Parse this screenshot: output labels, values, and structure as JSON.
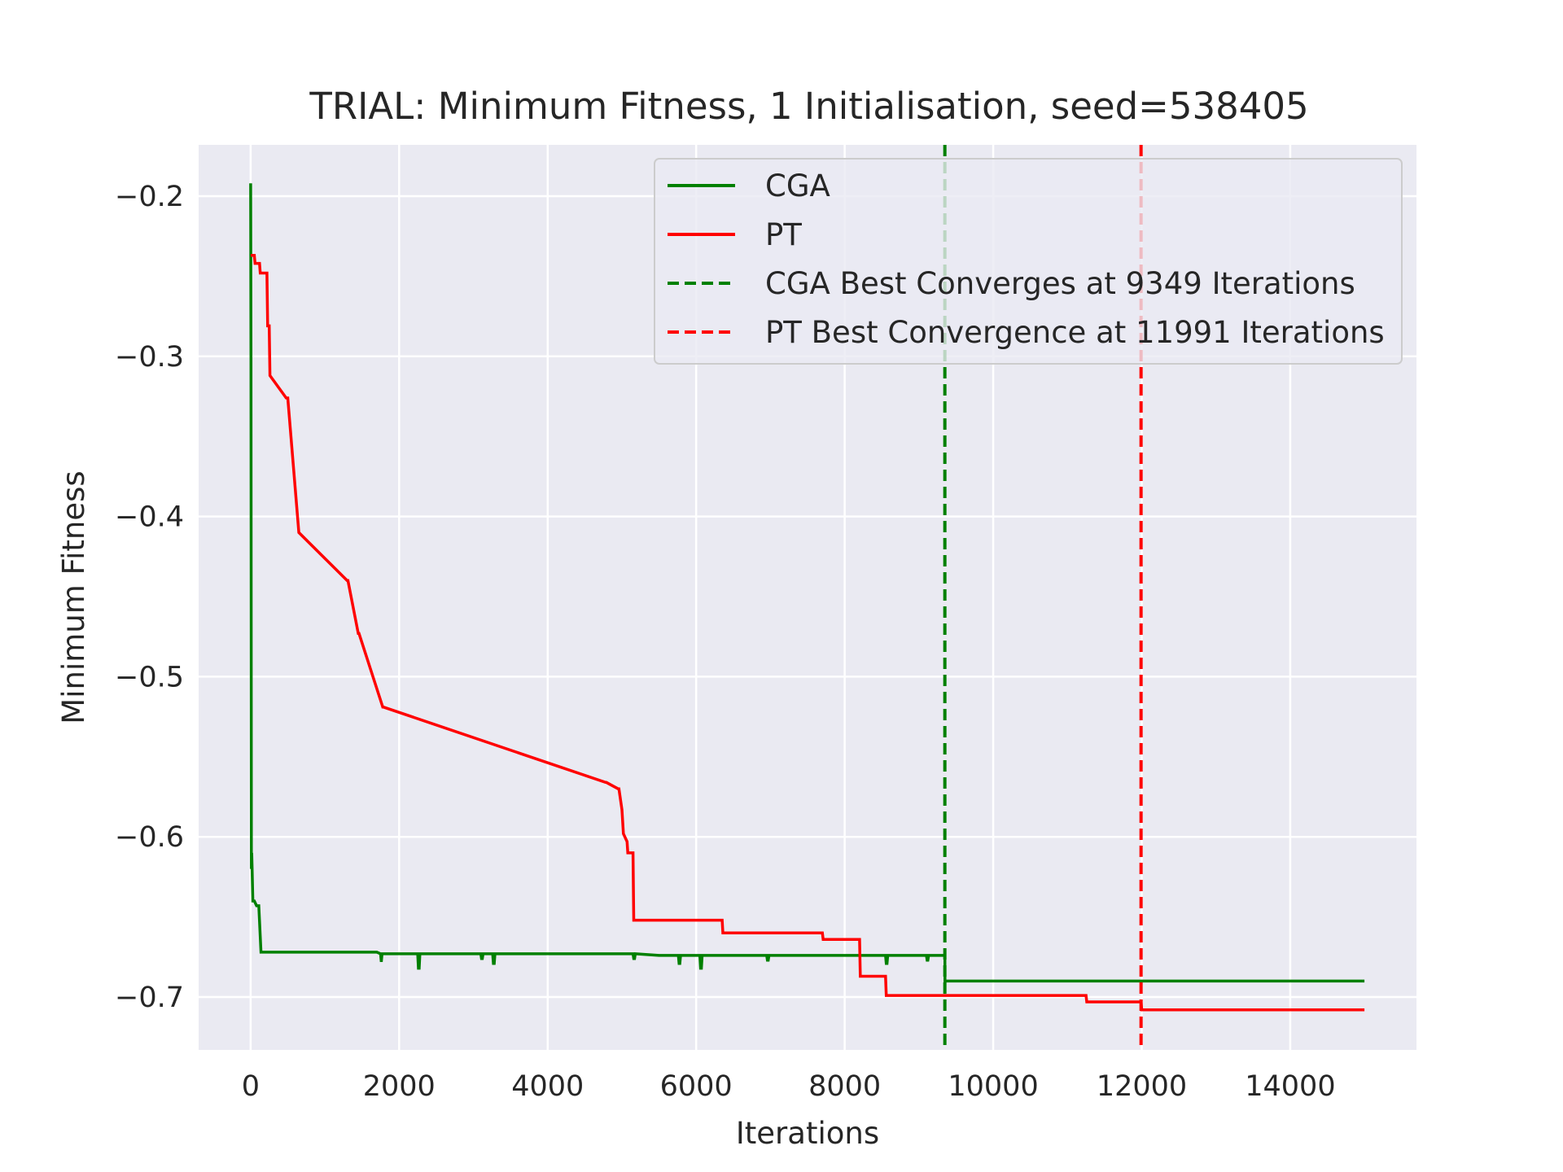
{
  "chart_data": {
    "type": "line",
    "title": "TRIAL: Minimum Fitness, 1 Initialisation, seed=538405",
    "xlabel": "Iterations",
    "ylabel": "Minimum Fitness",
    "xlim": [
      -700,
      15700
    ],
    "ylim": [
      -0.733,
      -0.168
    ],
    "xticks": [
      0,
      2000,
      4000,
      6000,
      8000,
      10000,
      12000,
      14000
    ],
    "xtick_labels": [
      "0",
      "2000",
      "4000",
      "6000",
      "8000",
      "10000",
      "12000",
      "14000"
    ],
    "yticks": [
      -0.2,
      -0.3,
      -0.4,
      -0.5,
      -0.6,
      -0.7
    ],
    "ytick_labels": [
      "−0.2",
      "−0.3",
      "−0.4",
      "−0.5",
      "−0.6",
      "−0.7"
    ],
    "grid": true,
    "legend_position": "top-right",
    "colors": {
      "background": "#eaeaf2",
      "grid": "#ffffff",
      "cga": "#008000",
      "pt": "#ff0000"
    },
    "series": [
      {
        "name": "CGA",
        "color": "#008000",
        "style": "solid",
        "x": [
          0,
          5,
          10,
          15,
          20,
          30,
          50,
          80,
          100,
          110,
          140,
          150,
          1700,
          1750,
          1760,
          1770,
          1780,
          2250,
          2260,
          2270,
          2280,
          3100,
          3110,
          3120,
          3130,
          3260,
          3270,
          3280,
          3290,
          5150,
          5160,
          5170,
          5180,
          5500,
          5760,
          5770,
          5780,
          5790,
          6050,
          6060,
          6070,
          6080,
          6950,
          6960,
          6970,
          6980,
          8550,
          8560,
          8570,
          8580,
          9100,
          9110,
          9120,
          9130,
          9349,
          9350,
          15000
        ],
        "y": [
          -0.192,
          -0.3,
          -0.62,
          -0.61,
          -0.62,
          -0.64,
          -0.64,
          -0.643,
          -0.643,
          -0.643,
          -0.672,
          -0.672,
          -0.672,
          -0.673,
          -0.678,
          -0.673,
          -0.673,
          -0.673,
          -0.682,
          -0.682,
          -0.673,
          -0.673,
          -0.676,
          -0.676,
          -0.673,
          -0.673,
          -0.679,
          -0.679,
          -0.673,
          -0.673,
          -0.676,
          -0.676,
          -0.673,
          -0.674,
          -0.674,
          -0.679,
          -0.679,
          -0.674,
          -0.674,
          -0.682,
          -0.682,
          -0.674,
          -0.674,
          -0.677,
          -0.677,
          -0.674,
          -0.674,
          -0.679,
          -0.679,
          -0.674,
          -0.674,
          -0.677,
          -0.677,
          -0.674,
          -0.674,
          -0.69,
          -0.69
        ]
      },
      {
        "name": "PT",
        "color": "#ff0000",
        "style": "solid",
        "x": [
          0,
          50,
          60,
          120,
          130,
          220,
          230,
          250,
          260,
          480,
          500,
          650,
          1300,
          1310,
          1450,
          1460,
          1780,
          1790,
          4780,
          4790,
          4950,
          4960,
          5000,
          5020,
          5070,
          5080,
          5150,
          5160,
          6350,
          6360,
          7700,
          7710,
          8200,
          8210,
          8550,
          8560,
          11250,
          11260,
          11991,
          12000,
          15000
        ],
        "y": [
          -0.237,
          -0.237,
          -0.242,
          -0.242,
          -0.248,
          -0.248,
          -0.281,
          -0.281,
          -0.312,
          -0.326,
          -0.326,
          -0.41,
          -0.44,
          -0.44,
          -0.473,
          -0.473,
          -0.519,
          -0.519,
          -0.566,
          -0.566,
          -0.57,
          -0.57,
          -0.583,
          -0.598,
          -0.603,
          -0.61,
          -0.61,
          -0.652,
          -0.652,
          -0.66,
          -0.66,
          -0.664,
          -0.664,
          -0.687,
          -0.687,
          -0.699,
          -0.699,
          -0.703,
          -0.703,
          -0.708,
          -0.708
        ]
      },
      {
        "name": "CGA Best Converges at 9349 Iterations",
        "color": "#008000",
        "style": "dashed",
        "vline_x": 9349
      },
      {
        "name": "PT Best Convergence at 11991 Iterations",
        "color": "#ff0000",
        "style": "dashed",
        "vline_x": 11991
      }
    ]
  }
}
